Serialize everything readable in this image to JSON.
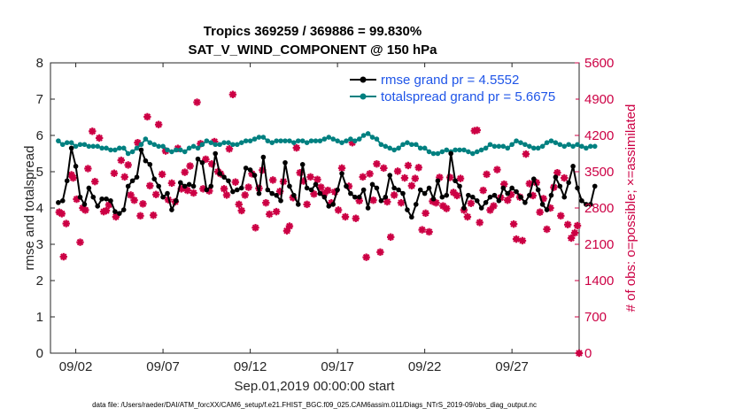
{
  "chart_data": {
    "type": "line",
    "title_line1": "Tropics 369259 / 369886 = 99.830%",
    "title_line2": "SAT_V_WIND_COMPONENT @ 150 hPa",
    "xlabel": "Sep.01,2019 00:00:00 start",
    "ylabel_left": "rmse and totalspread",
    "ylabel_right": "# of obs: o=possible; ×=assimilated",
    "footnote": "data file: /Users/raeder/DAI/ATM_forcXX/CAM6_setup/f.e21.FHIST_BGC.f09_025.CAM6assim.011/Diags_NTrS_2019-09/obs_diag_output.nc",
    "xlim": [
      0.55,
      30.85
    ],
    "ylim_left": [
      0,
      8
    ],
    "ylim_right": [
      0,
      5600
    ],
    "x_ticks": [
      {
        "day": 2,
        "label": "09/02"
      },
      {
        "day": 7,
        "label": "09/07"
      },
      {
        "day": 12,
        "label": "09/12"
      },
      {
        "day": 17,
        "label": "09/17"
      },
      {
        "day": 22,
        "label": "09/22"
      },
      {
        "day": 27,
        "label": "09/27"
      }
    ],
    "y_ticks_left": [
      "0",
      "1",
      "2",
      "3",
      "4",
      "5",
      "6",
      "7",
      "8"
    ],
    "y_ticks_right": [
      "0",
      "700",
      "1400",
      "2100",
      "2800",
      "3500",
      "4200",
      "4900",
      "5600"
    ],
    "legend": [
      {
        "label": "rmse grand pr = 4.5552",
        "color": "#000000"
      },
      {
        "label": "totalspread grand pr = 5.6675",
        "color": "#008080"
      }
    ],
    "x_start": 1.0,
    "x_step": 0.25,
    "series": [
      {
        "name": "rmse",
        "color": "#000000",
        "values": [
          4.15,
          4.2,
          4.75,
          5.65,
          5.15,
          4.3,
          4.1,
          4.55,
          4.3,
          4.05,
          4.25,
          4.25,
          4.2,
          3.9,
          3.85,
          3.95,
          4.6,
          4.75,
          4.85,
          5.6,
          5.3,
          5.2,
          4.8,
          4.6,
          4.3,
          4.4,
          3.95,
          4.2,
          4.7,
          4.6,
          4.65,
          4.6,
          5.35,
          5.25,
          4.5,
          4.6,
          5.5,
          4.95,
          4.85,
          4.75,
          4.45,
          4.5,
          4.55,
          5.1,
          5.05,
          4.9,
          4.4,
          5.4,
          4.5,
          4.4,
          4.35,
          4.2,
          5.25,
          4.6,
          4.35,
          4.1,
          5.2,
          4.55,
          4.5,
          4.65,
          4.4,
          4.3,
          4.05,
          4.1,
          4.5,
          4.95,
          4.6,
          4.4,
          4.3,
          4.3,
          4.5,
          4.0,
          4.65,
          4.55,
          4.2,
          4.3,
          4.9,
          4.55,
          4.5,
          4.4,
          3.95,
          3.75,
          4.1,
          4.5,
          4.4,
          4.55,
          4.25,
          4.75,
          4.3,
          4.35,
          5.5,
          4.75,
          4.6,
          4.0,
          4.35,
          4.3,
          4.2,
          4.0,
          4.15,
          4.3,
          4.35,
          4.2,
          4.55,
          4.4,
          4.55,
          4.45,
          4.3,
          4.15,
          4.35,
          4.8,
          4.5,
          4.1,
          3.95,
          4.35,
          4.85,
          4.6,
          4.3,
          4.7,
          5.15,
          4.55,
          4.2,
          4.1,
          4.1,
          4.6
        ]
      },
      {
        "name": "totalspread",
        "color": "#008080",
        "values": [
          5.85,
          5.75,
          5.8,
          5.8,
          5.7,
          5.75,
          5.75,
          5.7,
          5.7,
          5.7,
          5.65,
          5.65,
          5.6,
          5.6,
          5.65,
          5.65,
          5.5,
          5.55,
          5.65,
          5.75,
          5.9,
          5.8,
          5.75,
          5.7,
          5.7,
          5.6,
          5.55,
          5.6,
          5.6,
          5.55,
          5.65,
          5.7,
          5.65,
          5.75,
          5.85,
          5.8,
          5.75,
          5.75,
          5.8,
          5.8,
          5.75,
          5.75,
          5.8,
          5.85,
          5.85,
          5.9,
          5.95,
          5.95,
          5.85,
          5.8,
          5.85,
          5.85,
          5.85,
          5.85,
          5.8,
          5.85,
          5.85,
          5.8,
          5.85,
          5.85,
          5.85,
          5.9,
          5.95,
          5.9,
          5.85,
          5.8,
          5.85,
          5.9,
          5.85,
          5.9,
          6.0,
          6.05,
          5.95,
          5.9,
          5.75,
          5.7,
          5.65,
          5.6,
          5.65,
          5.75,
          5.8,
          5.75,
          5.75,
          5.65,
          5.65,
          5.55,
          5.5,
          5.5,
          5.55,
          5.6,
          5.55,
          5.6,
          5.6,
          5.6,
          5.55,
          5.5,
          5.55,
          5.6,
          5.65,
          5.75,
          5.7,
          5.7,
          5.7,
          5.65,
          5.75,
          5.85,
          5.8,
          5.75,
          5.7,
          5.65,
          5.65,
          5.7,
          5.8,
          5.85,
          5.8,
          5.75,
          5.7,
          5.75,
          5.7,
          5.75,
          5.7,
          5.65,
          5.7,
          5.7
        ]
      },
      {
        "name": "obs_possible_assimilated",
        "color": "#cc0044",
        "values": [
          2750,
          2740,
          1880,
          2560,
          3450,
          3400,
          2950,
          2180,
          2950,
          2820,
          3580,
          4270,
          3300,
          4140,
          2990,
          2750,
          2960,
          2830,
          2880,
          3500,
          2630,
          2850,
          2620,
          3690,
          4010,
          3450,
          3650,
          3030,
          2950,
          4080,
          2670,
          2880,
          4600,
          3230,
          2910,
          2690,
          3020,
          4440,
          3060,
          3450,
          3870,
          3860,
          2960,
          3370,
          3280,
          2920,
          3940,
          3170,
          3160,
          3480,
          3130,
          3300,
          3600,
          3090,
          3440,
          4020,
          3190,
          3760,
          3120,
          3170,
          3650,
          4070,
          3500,
          3480,
          3440,
          3170,
          3060,
          3960,
          3310,
          2870,
          2750,
          3050,
          3190,
          3460,
          3470,
          2420,
          2850,
          3190,
          3010,
          3530,
          2910,
          2680,
          2950,
          3350,
          2730,
          3130,
          3050,
          2870,
          3310,
          3660,
          2350,
          2450,
          3010,
          3960,
          3180,
          3480,
          3320,
          2870,
          3400,
          3080,
          3350,
          3070,
          3350,
          3200,
          3520,
          3080,
          3140,
          3450,
          2900,
          3110,
          3360,
          2760,
          3570,
          2630,
          3220,
          3210,
          3100,
          3230,
          2600,
          3080,
          2940,
          3000,
          3400,
          3350,
          3170,
          2830,
          2950,
          3650,
          2460,
          3570,
          2920,
          2240,
          2730,
          3050,
          3080,
          3020,
          3510,
          2900,
          3090,
          2940,
          3380,
          3620,
          3510,
          3230,
          3140,
          3370,
          3480,
          3580,
          2380,
          2700,
          2340,
          2930,
          2900,
          2940,
          3390,
          3170,
          2840,
          2790,
          2960,
          3390,
          3100,
          3360,
          3040,
          3130,
          3370,
          2980,
          2760,
          2940,
          2760,
          2630,
          2760,
          2620,
          2890,
          3130,
          3410,
          3340,
          3470,
          3580,
          3590,
          4290,
          4300,
          2520,
          2830,
          2360,
          3140,
          2860,
          3450,
          3110,
          2760,
          3060,
          2840,
          3130,
          2910,
          3540,
          3110,
          3100,
          3000,
          2720,
          3000,
          3020,
          3260,
          3360,
          2950,
          2960,
          3060,
          3100,
          2720,
          2490,
          2200,
          2410,
          3010,
          2470,
          2170,
          2640,
          3150,
          3840,
          3270,
          3190,
          3050,
          3040,
          3290,
          2720,
          2870,
          3330,
          2980,
          2860,
          2760,
          2870,
          2390,
          2370,
          2800,
          2980,
          2950,
          3360,
          2900,
          3200,
          3480,
          3000,
          2650,
          3380,
          3150,
          3210,
          2480,
          2400,
          2220,
          2460,
          2270,
          2540,
          3030,
          2400,
          2220,
          2320,
          2460,
          2780,
          3040,
          2870,
          3290,
          2840,
          2710,
          2910,
          3010,
          2990,
          2970,
          3120,
          2980,
          2700,
          2900,
          2960,
          2820,
          2380,
          2450,
          2150,
          2250,
          2280,
          2370,
          2920,
          2960,
          3230,
          3110,
          2740,
          2620,
          2840,
          2960,
          3190,
          2510,
          2660,
          2750,
          2780,
          2880,
          2130,
          2180,
          2420,
          2300,
          2900,
          2940,
          2960,
          3000
        ]
      }
    ],
    "obs_points": [
      {
        "x": 1.05,
        "y": 2720
      },
      {
        "x": 1.2,
        "y": 2690
      },
      {
        "x": 1.3,
        "y": 1860
      },
      {
        "x": 1.45,
        "y": 2500
      },
      {
        "x": 1.75,
        "y": 3440
      },
      {
        "x": 1.85,
        "y": 3380
      },
      {
        "x": 2.05,
        "y": 2970
      },
      {
        "x": 2.25,
        "y": 2140
      },
      {
        "x": 2.4,
        "y": 2800
      },
      {
        "x": 2.55,
        "y": 2760
      },
      {
        "x": 2.7,
        "y": 3560
      },
      {
        "x": 2.95,
        "y": 4280
      },
      {
        "x": 3.1,
        "y": 3310
      },
      {
        "x": 3.35,
        "y": 4150
      },
      {
        "x": 3.6,
        "y": 2730
      },
      {
        "x": 3.75,
        "y": 2750
      },
      {
        "x": 3.9,
        "y": 2860
      },
      {
        "x": 4.2,
        "y": 3470
      },
      {
        "x": 4.3,
        "y": 2630
      },
      {
        "x": 4.6,
        "y": 3720
      },
      {
        "x": 4.8,
        "y": 3400
      },
      {
        "x": 5.0,
        "y": 3630
      },
      {
        "x": 5.15,
        "y": 3050
      },
      {
        "x": 5.35,
        "y": 2950
      },
      {
        "x": 5.55,
        "y": 4060
      },
      {
        "x": 5.7,
        "y": 2650
      },
      {
        "x": 5.85,
        "y": 2880
      },
      {
        "x": 6.1,
        "y": 4560
      },
      {
        "x": 6.25,
        "y": 3230
      },
      {
        "x": 6.45,
        "y": 2660
      },
      {
        "x": 6.6,
        "y": 3060
      },
      {
        "x": 6.75,
        "y": 4410
      },
      {
        "x": 6.95,
        "y": 3450
      },
      {
        "x": 7.15,
        "y": 3900
      },
      {
        "x": 7.3,
        "y": 2960
      },
      {
        "x": 7.5,
        "y": 3280
      },
      {
        "x": 7.7,
        "y": 2920
      },
      {
        "x": 7.85,
        "y": 3950
      },
      {
        "x": 8.05,
        "y": 3170
      },
      {
        "x": 8.25,
        "y": 3490
      },
      {
        "x": 8.4,
        "y": 3140
      },
      {
        "x": 8.55,
        "y": 3610
      },
      {
        "x": 8.75,
        "y": 3090
      },
      {
        "x": 8.95,
        "y": 4840
      },
      {
        "x": 9.15,
        "y": 4040
      },
      {
        "x": 9.3,
        "y": 3170
      },
      {
        "x": 9.45,
        "y": 3740
      },
      {
        "x": 9.65,
        "y": 3130
      },
      {
        "x": 9.8,
        "y": 3650
      },
      {
        "x": 9.95,
        "y": 4080
      },
      {
        "x": 10.15,
        "y": 3500
      },
      {
        "x": 10.3,
        "y": 3460
      },
      {
        "x": 10.5,
        "y": 3170
      },
      {
        "x": 10.65,
        "y": 3050
      },
      {
        "x": 10.8,
        "y": 3940
      },
      {
        "x": 11.0,
        "y": 4990
      },
      {
        "x": 11.15,
        "y": 3300
      },
      {
        "x": 11.35,
        "y": 2870
      },
      {
        "x": 11.5,
        "y": 2750
      },
      {
        "x": 11.7,
        "y": 3050
      },
      {
        "x": 11.9,
        "y": 3200
      },
      {
        "x": 12.1,
        "y": 3460
      },
      {
        "x": 12.3,
        "y": 2420
      },
      {
        "x": 12.5,
        "y": 3180
      },
      {
        "x": 12.7,
        "y": 3530
      },
      {
        "x": 12.9,
        "y": 2900
      },
      {
        "x": 13.1,
        "y": 2680
      },
      {
        "x": 13.3,
        "y": 3340
      },
      {
        "x": 13.5,
        "y": 2730
      },
      {
        "x": 13.7,
        "y": 3120
      },
      {
        "x": 13.9,
        "y": 3310
      },
      {
        "x": 14.1,
        "y": 2360
      },
      {
        "x": 14.25,
        "y": 2450
      },
      {
        "x": 14.45,
        "y": 3000
      },
      {
        "x": 14.65,
        "y": 3960
      },
      {
        "x": 14.85,
        "y": 3480
      },
      {
        "x": 15.05,
        "y": 3320
      },
      {
        "x": 15.25,
        "y": 2870
      },
      {
        "x": 15.45,
        "y": 3400
      },
      {
        "x": 15.65,
        "y": 3070
      },
      {
        "x": 15.85,
        "y": 3350
      },
      {
        "x": 16.05,
        "y": 3200
      },
      {
        "x": 16.25,
        "y": 3080
      },
      {
        "x": 16.45,
        "y": 3140
      },
      {
        "x": 16.65,
        "y": 2900
      },
      {
        "x": 16.85,
        "y": 3110
      },
      {
        "x": 17.05,
        "y": 2760
      },
      {
        "x": 17.25,
        "y": 3570
      },
      {
        "x": 17.45,
        "y": 2630
      },
      {
        "x": 17.65,
        "y": 3220
      },
      {
        "x": 17.85,
        "y": 4060
      },
      {
        "x": 18.05,
        "y": 2600
      },
      {
        "x": 18.25,
        "y": 2940
      },
      {
        "x": 18.45,
        "y": 3400
      },
      {
        "x": 18.65,
        "y": 1850
      },
      {
        "x": 18.85,
        "y": 3460
      },
      {
        "x": 19.05,
        "y": 2950
      },
      {
        "x": 19.25,
        "y": 3650
      },
      {
        "x": 19.45,
        "y": 1950
      },
      {
        "x": 19.65,
        "y": 3570
      },
      {
        "x": 19.85,
        "y": 2920
      },
      {
        "x": 20.05,
        "y": 2240
      },
      {
        "x": 20.25,
        "y": 3050
      },
      {
        "x": 20.45,
        "y": 3510
      },
      {
        "x": 20.65,
        "y": 2900
      },
      {
        "x": 20.85,
        "y": 3380
      },
      {
        "x": 21.05,
        "y": 3620
      },
      {
        "x": 21.25,
        "y": 3230
      },
      {
        "x": 21.45,
        "y": 3370
      },
      {
        "x": 21.65,
        "y": 3580
      },
      {
        "x": 21.85,
        "y": 2380
      },
      {
        "x": 22.05,
        "y": 2700
      },
      {
        "x": 22.25,
        "y": 2340
      },
      {
        "x": 22.45,
        "y": 2930
      },
      {
        "x": 22.65,
        "y": 2900
      },
      {
        "x": 22.85,
        "y": 3390
      },
      {
        "x": 23.05,
        "y": 2840
      },
      {
        "x": 23.25,
        "y": 2790
      },
      {
        "x": 23.45,
        "y": 3390
      },
      {
        "x": 23.65,
        "y": 3100
      },
      {
        "x": 23.85,
        "y": 3040
      },
      {
        "x": 24.05,
        "y": 3370
      },
      {
        "x": 24.25,
        "y": 2760
      },
      {
        "x": 24.45,
        "y": 2630
      },
      {
        "x": 24.65,
        "y": 2890
      },
      {
        "x": 24.85,
        "y": 4290
      },
      {
        "x": 25.0,
        "y": 4300
      },
      {
        "x": 25.15,
        "y": 2520
      },
      {
        "x": 25.35,
        "y": 3140
      },
      {
        "x": 25.55,
        "y": 3450
      },
      {
        "x": 25.75,
        "y": 2760
      },
      {
        "x": 25.95,
        "y": 2840
      },
      {
        "x": 26.15,
        "y": 3540
      },
      {
        "x": 26.35,
        "y": 3000
      },
      {
        "x": 26.55,
        "y": 3260
      },
      {
        "x": 26.75,
        "y": 2950
      },
      {
        "x": 26.95,
        "y": 3060
      },
      {
        "x": 27.1,
        "y": 2490
      },
      {
        "x": 27.25,
        "y": 2200
      },
      {
        "x": 27.45,
        "y": 3010
      },
      {
        "x": 27.6,
        "y": 2170
      },
      {
        "x": 27.8,
        "y": 3840
      },
      {
        "x": 28.0,
        "y": 3270
      },
      {
        "x": 28.2,
        "y": 3040
      },
      {
        "x": 28.4,
        "y": 3290
      },
      {
        "x": 28.6,
        "y": 2720
      },
      {
        "x": 28.8,
        "y": 2980
      },
      {
        "x": 29.0,
        "y": 2390
      },
      {
        "x": 29.2,
        "y": 2800
      },
      {
        "x": 29.4,
        "y": 3200
      },
      {
        "x": 29.6,
        "y": 3480
      },
      {
        "x": 29.8,
        "y": 2650
      },
      {
        "x": 30.0,
        "y": 3380
      },
      {
        "x": 30.2,
        "y": 2480
      },
      {
        "x": 30.4,
        "y": 2220
      },
      {
        "x": 30.6,
        "y": 2320
      },
      {
        "x": 30.75,
        "y": 2460
      },
      {
        "x": 30.85,
        "y": 0
      }
    ]
  }
}
